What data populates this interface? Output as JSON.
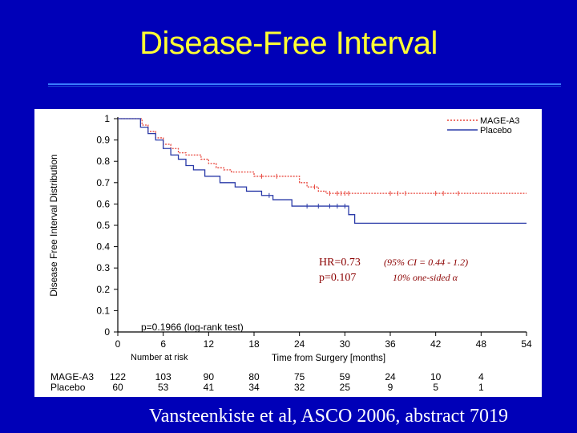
{
  "slide": {
    "title": "Disease-Free Interval",
    "citation": "Vansteenkiste et al, ASCO 2006, abstract 7019"
  },
  "colors": {
    "background": "#0000b8",
    "title": "#ffff33",
    "citation": "#ffffff",
    "mage": "#e8463c",
    "placebo": "#2a3aa8"
  },
  "chart_data": {
    "type": "line",
    "subtype": "kaplan-meier",
    "title": "",
    "xlabel": "Time from Surgery [months]",
    "ylabel": "Disease Free Interval Distribution",
    "xlim": [
      0,
      54
    ],
    "ylim": [
      0,
      1
    ],
    "xticks": [
      0,
      6,
      12,
      18,
      24,
      30,
      36,
      42,
      48,
      54
    ],
    "yticks": [
      0,
      0.1,
      0.2,
      0.3,
      0.4,
      0.5,
      0.6,
      0.7,
      0.8,
      0.9,
      1
    ],
    "legend_position": "top-right",
    "series": [
      {
        "name": "MAGE-A3",
        "style": "dotted",
        "x": [
          0,
          2.5,
          3.2,
          4.0,
          5.0,
          6.0,
          7.0,
          8.0,
          9.0,
          11.0,
          12.0,
          13.0,
          14.0,
          15.0,
          18.0,
          24.0,
          25.0,
          26.5,
          27.5,
          30.5,
          54.0
        ],
        "y": [
          1.0,
          1.0,
          0.97,
          0.94,
          0.91,
          0.88,
          0.86,
          0.84,
          0.83,
          0.81,
          0.79,
          0.77,
          0.76,
          0.75,
          0.73,
          0.7,
          0.68,
          0.66,
          0.65,
          0.65,
          0.65
        ],
        "censor_x": [
          19,
          21,
          26,
          28,
          29,
          29.5,
          30,
          30.5,
          36,
          37,
          38,
          42,
          43,
          45
        ]
      },
      {
        "name": "Placebo",
        "style": "solid",
        "x": [
          0,
          2.0,
          3.0,
          4.0,
          5.0,
          6.0,
          7.0,
          8.0,
          9.0,
          10.0,
          11.5,
          13.5,
          15.5,
          17.0,
          19.0,
          20.5,
          23.0,
          30.0,
          30.5,
          31.3,
          54.0
        ],
        "y": [
          1.0,
          1.0,
          0.96,
          0.93,
          0.9,
          0.86,
          0.83,
          0.81,
          0.78,
          0.76,
          0.73,
          0.7,
          0.68,
          0.66,
          0.64,
          0.62,
          0.59,
          0.59,
          0.55,
          0.51,
          0.51
        ],
        "censor_x": [
          20,
          25,
          26.5,
          28,
          29,
          30
        ]
      }
    ],
    "annotations": {
      "logrank": "p=0.1966 (log-rank test)",
      "hr": "HR=0.73",
      "p": "p=0.107",
      "ci": "(95% CI = 0.44 - 1.2)",
      "one_sided": "10% one-sided α"
    },
    "risk_table": {
      "heading": "Number at risk",
      "rows": [
        {
          "label": "MAGE-A3",
          "values": [
            122,
            103,
            90,
            80,
            75,
            59,
            24,
            10,
            4
          ]
        },
        {
          "label": "Placebo",
          "values": [
            60,
            53,
            41,
            34,
            32,
            25,
            9,
            5,
            1
          ]
        }
      ]
    }
  }
}
